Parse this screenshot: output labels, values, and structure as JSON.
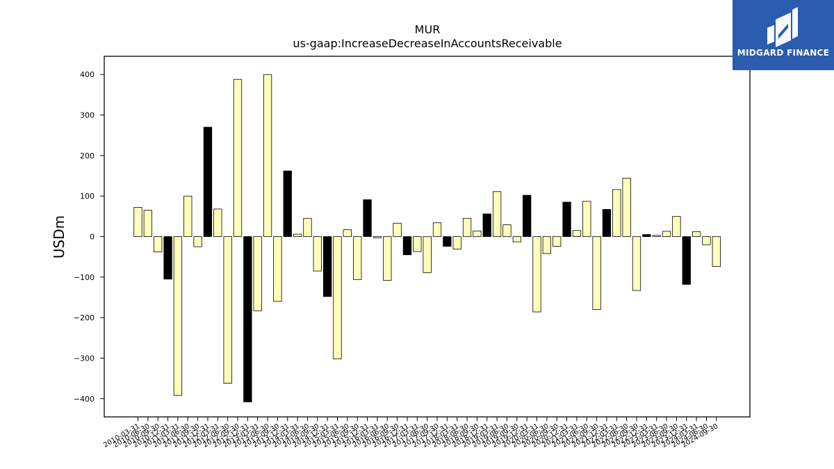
{
  "logo": {
    "text": "MIDGARD FINANCE",
    "background": "#2b5cad"
  },
  "colors": {
    "positive_fill": "#ffffbb",
    "highlight_fill": "#000000",
    "stroke": "#000000"
  },
  "chart_data": {
    "type": "bar",
    "title": "MUR",
    "subtitle": "us-gaap:IncreaseDecreaseInAccountsReceivable",
    "xlabel": "",
    "ylabel": "USDm",
    "ylim": [
      -445,
      445
    ],
    "yticks": [
      -400,
      -300,
      -200,
      -100,
      0,
      100,
      200,
      300,
      400
    ],
    "ytick_labels": [
      "−400",
      "−300",
      "−200",
      "−100",
      "0",
      "100",
      "200",
      "300",
      "400"
    ],
    "grid": false,
    "categories": [
      "2010-03-31",
      "2010-06-30",
      "2010-09-30",
      "2010-12-31",
      "2011-03-31",
      "2011-06-30",
      "2011-09-30",
      "2011-12-31",
      "2012-03-31",
      "2012-06-30",
      "2012-09-30",
      "2012-12-31",
      "2013-03-31",
      "2013-06-30",
      "2013-09-30",
      "2013-12-31",
      "2014-03-31",
      "2014-06-30",
      "2014-09-30",
      "2014-12-31",
      "2015-03-31",
      "2015-06-30",
      "2015-09-30",
      "2015-12-31",
      "2016-03-31",
      "2016-06-30",
      "2016-09-30",
      "2016-12-31",
      "2017-03-31",
      "2017-06-30",
      "2017-09-30",
      "2017-12-31",
      "2018-03-31",
      "2018-06-30",
      "2018-09-30",
      "2018-12-31",
      "2019-03-31",
      "2019-06-30",
      "2019-09-30",
      "2019-12-31",
      "2020-03-31",
      "2020-06-30",
      "2020-09-30",
      "2020-12-31",
      "2021-03-31",
      "2021-06-30",
      "2021-09-30",
      "2021-12-31",
      "2022-03-31",
      "2022-06-30",
      "2022-09-30",
      "2022-12-31",
      "2023-03-31",
      "2023-06-30",
      "2023-09-30",
      "2023-12-31",
      "2024-03-31",
      "2024-06-30",
      "2024-09-30"
    ],
    "values": [
      72,
      65,
      -38,
      -105,
      -392,
      100,
      -25,
      270,
      68,
      -362,
      388,
      -408,
      -183,
      400,
      -160,
      162,
      6,
      45,
      -85,
      -148,
      -302,
      17,
      -106,
      91,
      -3,
      -108,
      33,
      -45,
      -37,
      -89,
      34,
      -24,
      -31,
      45,
      14,
      56,
      111,
      29,
      -13,
      102,
      -186,
      -42,
      -24,
      85,
      15,
      87,
      -180,
      67,
      116,
      144,
      -133,
      5,
      3,
      13,
      50,
      -118,
      12,
      -20,
      -74
    ],
    "highlighted": [
      false,
      false,
      false,
      true,
      false,
      false,
      false,
      true,
      false,
      false,
      false,
      true,
      false,
      false,
      false,
      true,
      false,
      false,
      false,
      true,
      false,
      false,
      false,
      true,
      false,
      false,
      false,
      true,
      false,
      false,
      false,
      true,
      false,
      false,
      false,
      true,
      false,
      false,
      false,
      true,
      false,
      false,
      false,
      true,
      false,
      false,
      false,
      true,
      false,
      false,
      false,
      true,
      false,
      false,
      false,
      true,
      false,
      false,
      false
    ]
  }
}
